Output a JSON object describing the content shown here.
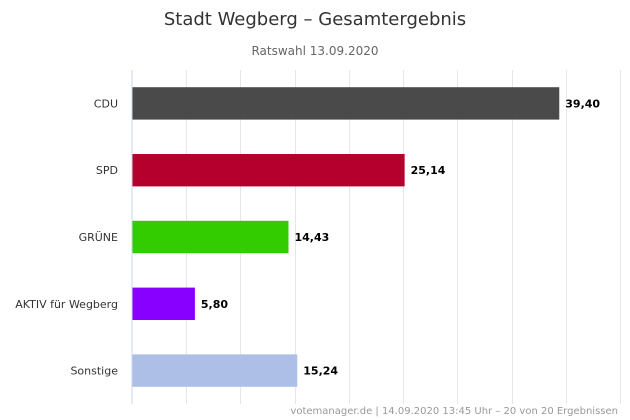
{
  "chart_data": {
    "type": "bar",
    "orientation": "horizontal",
    "title": "Stadt Wegberg – Gesamtergebnis",
    "subtitle": "Ratswahl 13.09.2020",
    "categories": [
      "CDU",
      "SPD",
      "GRÜNE",
      "AKTIV für Wegberg",
      "Sonstige"
    ],
    "values": [
      39.4,
      25.14,
      14.43,
      5.8,
      15.24
    ],
    "value_labels": [
      "39,40",
      "25,14",
      "14,43",
      "5,80",
      "15,24"
    ],
    "colors": [
      "#4a4a4a",
      "#b5002e",
      "#33cc00",
      "#8800ff",
      "#adbfe6"
    ],
    "xlim": [
      0,
      45
    ],
    "grid": true,
    "legend": "none",
    "xlabel": "",
    "ylabel": ""
  },
  "credits": "votemanager.de | 14.09.2020 13:45 Uhr – 20 von 20 Ergebnissen"
}
